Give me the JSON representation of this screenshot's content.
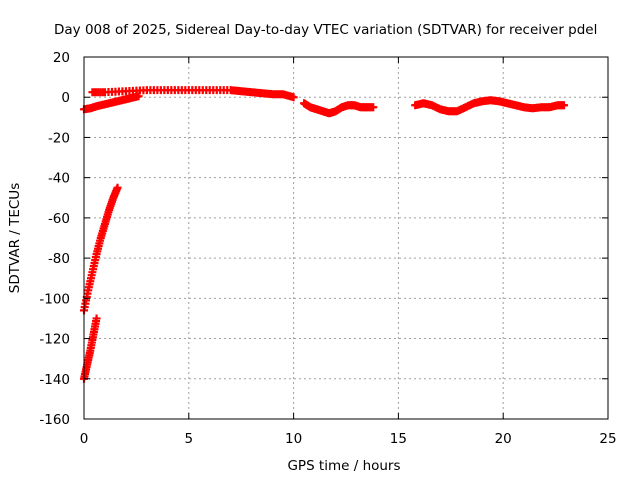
{
  "chart_data": {
    "type": "scatter",
    "title": "Day 008 of 2025, Sidereal Day-to-day VTEC variation (SDTVAR) for receiver pdel",
    "xlabel": "GPS time / hours",
    "ylabel": "SDTVAR / TECUs",
    "xlim": [
      0,
      25
    ],
    "ylim": [
      -160,
      20
    ],
    "xticks": [
      0,
      5,
      10,
      15,
      20,
      25
    ],
    "yticks": [
      -160,
      -140,
      -120,
      -100,
      -80,
      -60,
      -40,
      -20,
      0,
      20
    ],
    "grid": true,
    "marker_color": "#ff0000",
    "series": [
      {
        "segments": [
          {
            "x": [
              0.0,
              0.3,
              0.6,
              1.0,
              1.4,
              1.8,
              2.2,
              2.6
            ],
            "y": [
              -6,
              -5.5,
              -4.5,
              -3.5,
              -2.5,
              -1.5,
              -0.5,
              0.5
            ]
          },
          {
            "x": [
              0.4,
              1.0,
              2.0,
              3.0,
              4.0,
              5.0,
              6.0,
              7.0,
              7.5,
              8.0,
              8.5,
              9.0,
              9.5,
              10.0
            ],
            "y": [
              2.5,
              2.5,
              3,
              3.5,
              3.5,
              3.5,
              3.5,
              3.5,
              3,
              2.5,
              2,
              1.5,
              1.5,
              0
            ]
          },
          {
            "x": [
              0.0,
              0.2,
              0.4,
              0.6,
              0.8,
              1.0,
              1.2,
              1.4,
              1.6
            ],
            "y": [
              -106,
              -96,
              -87,
              -78,
              -70,
              -63,
              -56,
              -50,
              -45
            ]
          },
          {
            "x": [
              0.0,
              0.15,
              0.3,
              0.45,
              0.6
            ],
            "y": [
              -140,
              -133,
              -126,
              -118,
              -110
            ]
          },
          {
            "x": [
              10.5,
              10.8,
              11.1,
              11.4,
              11.7,
              12.0,
              12.3,
              12.6,
              12.9,
              13.2,
              13.5,
              13.8
            ],
            "y": [
              -3,
              -5,
              -6,
              -7,
              -8,
              -7,
              -5,
              -4,
              -4,
              -5,
              -5,
              -5
            ]
          },
          {
            "x": [
              15.8,
              16.2,
              16.6,
              17.0,
              17.4,
              17.8,
              18.2,
              18.6,
              19.0,
              19.4,
              19.8,
              20.2,
              20.6,
              21.0,
              21.4,
              21.8,
              22.2,
              22.6,
              22.9
            ],
            "y": [
              -4,
              -3,
              -4,
              -6,
              -7,
              -7,
              -5,
              -3,
              -2,
              -1.5,
              -2,
              -3,
              -4,
              -5,
              -5.5,
              -5,
              -5,
              -4,
              -4
            ]
          }
        ]
      }
    ]
  }
}
